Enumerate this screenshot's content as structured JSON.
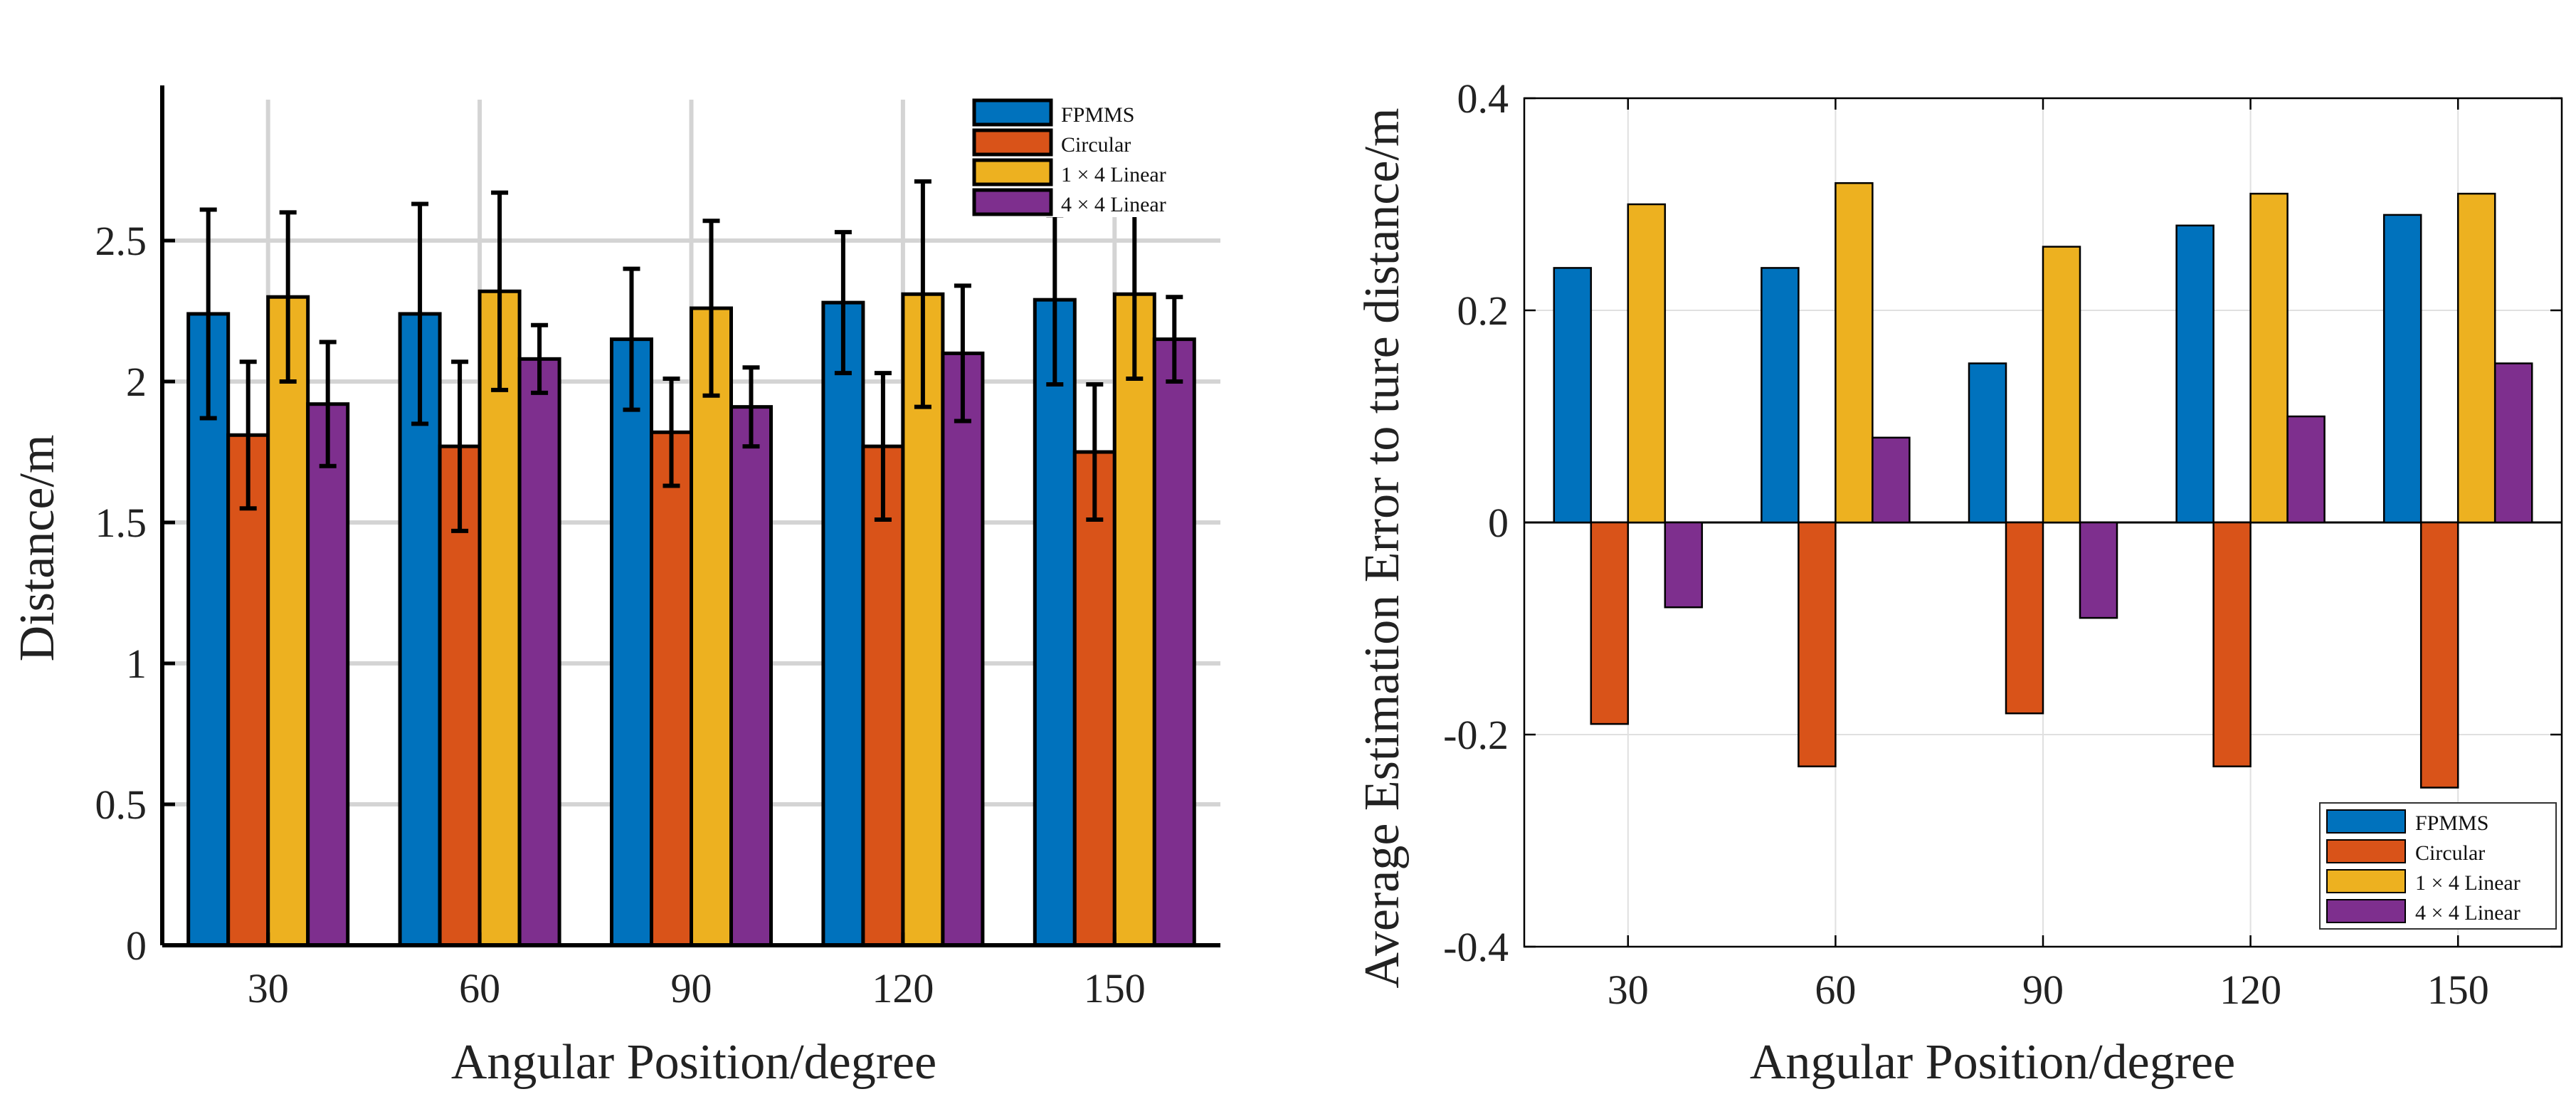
{
  "series_colors": {
    "FPMMS": "#0072BD",
    "Circular": "#D95319",
    "1 × 4 Linear": "#EDB120",
    "4 × 4 Linear": "#7E2F8E"
  },
  "chart_data": [
    {
      "type": "bar",
      "categories": [
        "30",
        "60",
        "90",
        "120",
        "150"
      ],
      "xlabel": "Angular Position/degree",
      "ylabel": "Distance/m",
      "ylim": [
        0,
        3.0
      ],
      "yticks": [
        0,
        0.5,
        1,
        1.5,
        2,
        2.5
      ],
      "ytick_labels": [
        "0",
        "0.5",
        "1",
        "1.5",
        "2",
        "2.5"
      ],
      "grid": true,
      "legend_position": "top-right",
      "series": [
        {
          "name": "FPMMS",
          "values": [
            2.24,
            2.24,
            2.15,
            2.28,
            2.29
          ],
          "error": [
            0.37,
            0.39,
            0.25,
            0.25,
            0.3
          ]
        },
        {
          "name": "Circular",
          "values": [
            1.81,
            1.77,
            1.82,
            1.77,
            1.75
          ],
          "error": [
            0.26,
            0.3,
            0.19,
            0.26,
            0.24
          ]
        },
        {
          "name": "1 × 4 Linear",
          "values": [
            2.3,
            2.32,
            2.26,
            2.31,
            2.31
          ],
          "error": [
            0.3,
            0.35,
            0.31,
            0.4,
            0.3
          ]
        },
        {
          "name": "4 × 4 Linear",
          "values": [
            1.92,
            2.08,
            1.91,
            2.1,
            2.15
          ],
          "error": [
            0.22,
            0.12,
            0.14,
            0.24,
            0.15
          ]
        }
      ]
    },
    {
      "type": "bar",
      "categories": [
        "30",
        "60",
        "90",
        "120",
        "150"
      ],
      "xlabel": "Angular Position/degree",
      "ylabel": "Average Estimation Error to ture distance/m",
      "ylim": [
        -0.4,
        0.4
      ],
      "yticks": [
        -0.4,
        -0.2,
        0,
        0.2,
        0.4
      ],
      "ytick_labels": [
        "-0.4",
        "-0.2",
        "0",
        "0.2",
        "0.4"
      ],
      "grid": true,
      "legend_position": "bottom-right",
      "series": [
        {
          "name": "FPMMS",
          "values": [
            0.24,
            0.24,
            0.15,
            0.28,
            0.29
          ]
        },
        {
          "name": "Circular",
          "values": [
            -0.19,
            -0.23,
            -0.18,
            -0.23,
            -0.25
          ]
        },
        {
          "name": "1 × 4 Linear",
          "values": [
            0.3,
            0.32,
            0.26,
            0.31,
            0.31
          ]
        },
        {
          "name": "4 × 4 Linear",
          "values": [
            -0.08,
            0.08,
            -0.09,
            0.1,
            0.15
          ]
        }
      ]
    }
  ]
}
